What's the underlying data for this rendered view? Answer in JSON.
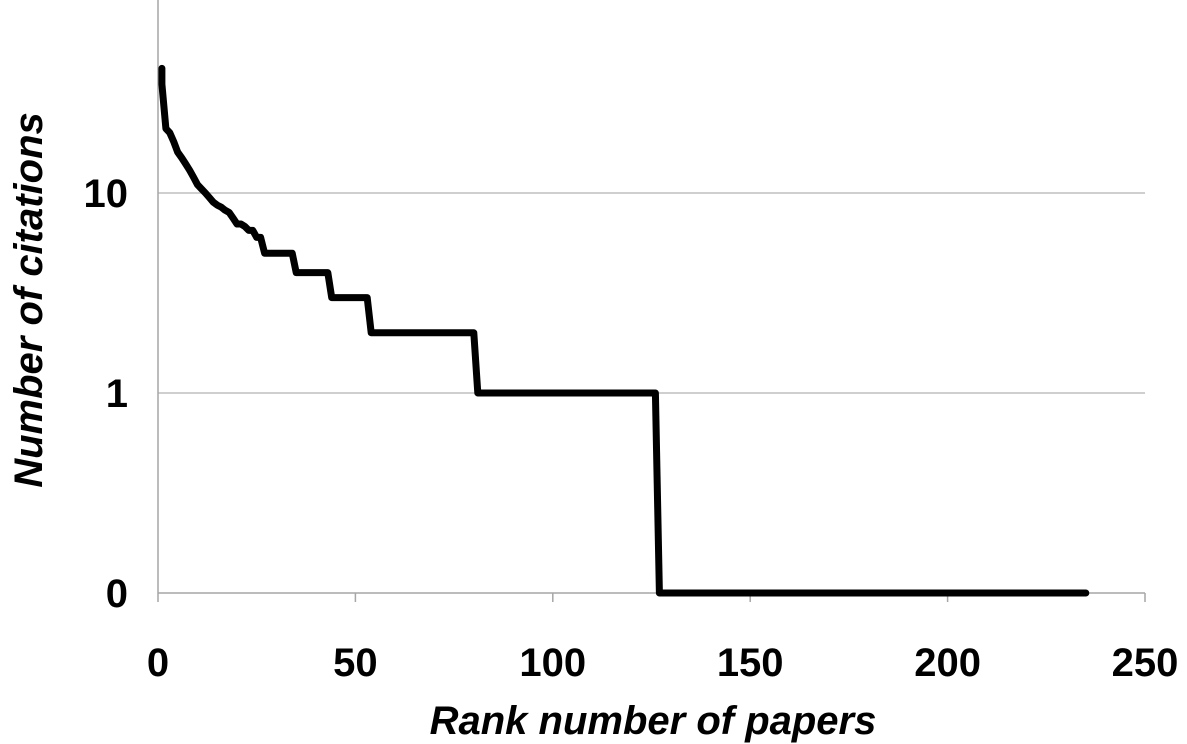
{
  "chart_data": {
    "type": "line",
    "title": "",
    "xlabel": "Rank number of papers",
    "ylabel": "Number of citations",
    "xlim": [
      0,
      250
    ],
    "x_ticks": [
      "0",
      "50",
      "100",
      "150",
      "200",
      "250"
    ],
    "y_ticks": [
      "0",
      "1",
      "10"
    ],
    "y_scale": "log-like (labels 0, 1, 10 at equal spacing)",
    "grid": "horizontal",
    "legend": "none",
    "series": [
      {
        "name": "",
        "x": [
          1,
          1,
          2,
          3,
          4,
          5,
          6,
          7,
          8,
          9,
          10,
          11,
          12,
          13,
          14,
          15,
          16,
          17,
          18,
          19,
          20,
          21,
          22,
          23,
          24,
          25,
          26,
          27,
          34,
          35,
          43,
          44,
          53,
          54,
          80,
          81,
          126,
          127,
          235
        ],
        "y": [
          42,
          35,
          21,
          20,
          18,
          16,
          15,
          14,
          13,
          12,
          11,
          10.5,
          10,
          9.5,
          9,
          8.7,
          8.5,
          8.2,
          8,
          7.5,
          7,
          7,
          6.8,
          6.5,
          6.5,
          6,
          6,
          5,
          5,
          4,
          4,
          3,
          3,
          2,
          2,
          1,
          1,
          0,
          0
        ]
      }
    ],
    "colors": {
      "line": "#000000",
      "grid": "#bfbfbf",
      "axis": "#a6a6a6"
    }
  }
}
